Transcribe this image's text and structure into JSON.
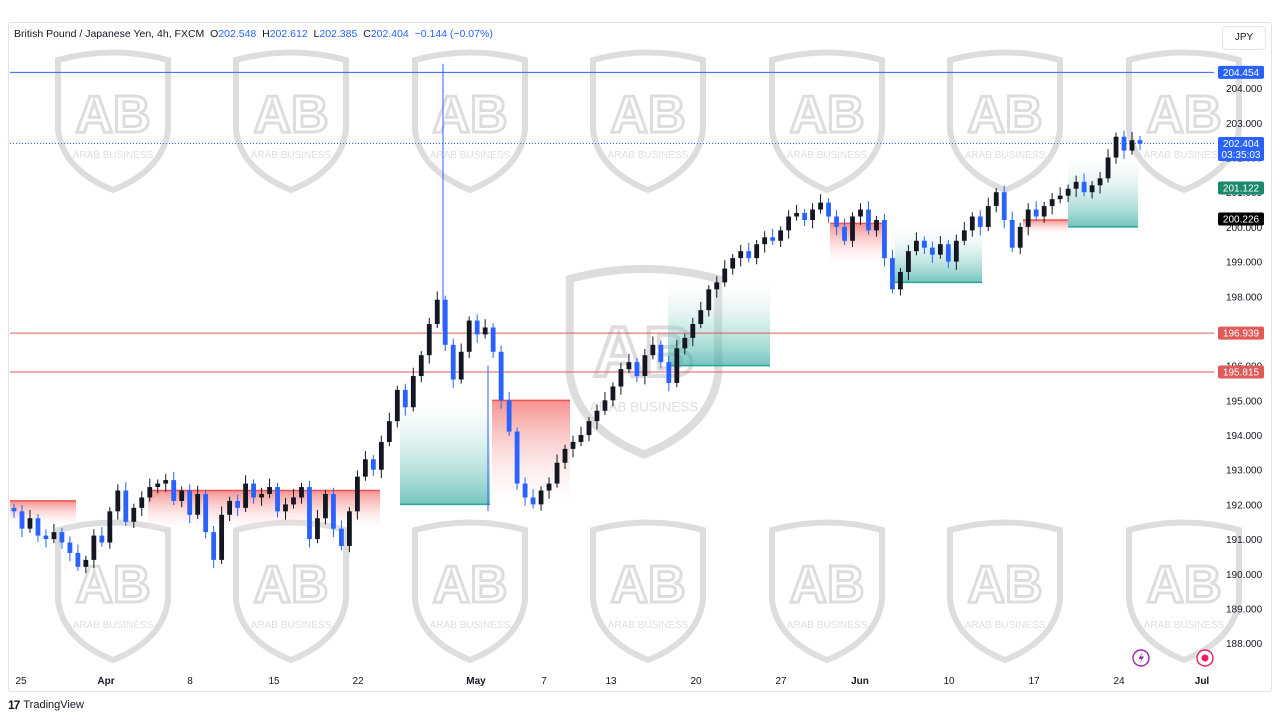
{
  "header": {
    "symbol": "British Pound / Japanese Yen, 4h, FXCM",
    "o_label": "O",
    "o_value": "202.548",
    "h_label": "H",
    "h_value": "202.612",
    "l_label": "L",
    "l_value": "202.385",
    "c_label": "C",
    "c_value": "202.404",
    "change": "−0.144 (−0.07%)"
  },
  "currency_button": "JPY",
  "branding": {
    "logo": "TradingView"
  },
  "watermark_text": "ARAB BUSINESS",
  "colors": {
    "candle_up": "#131722",
    "candle_down": "#2962ff",
    "support_fill": "#26a69a",
    "resistance_fill": "#ef5350",
    "top_line": "#2962ff",
    "red_line": "#e05a5a",
    "price_tag": "#2962ff"
  },
  "chart_data": {
    "type": "candlestick",
    "title": "British Pound / Japanese Yen, 4h, FXCM",
    "y_axis": {
      "ticks": [
        188,
        189,
        190,
        191,
        192,
        193,
        194,
        195,
        196,
        197,
        198,
        199,
        200,
        201,
        202,
        203,
        204
      ],
      "tick_labels": [
        "188.000",
        "189.000",
        "190.000",
        "191.000",
        "192.000",
        "193.000",
        "194.000",
        "195.000",
        "196.000",
        "197.000",
        "198.000",
        "199.000",
        "200.000",
        "201.000",
        "202.000",
        "203.000",
        "204.000"
      ],
      "range": [
        187.6,
        205.1
      ]
    },
    "x_axis": {
      "labels": [
        "25",
        "Apr",
        "8",
        "15",
        "22",
        "May",
        "7",
        "13",
        "20",
        "27",
        "Jun",
        "10",
        "17",
        "24",
        "Jul"
      ],
      "bold_labels": [
        "Apr",
        "May",
        "Jun",
        "Jul"
      ]
    },
    "horizontal_lines": [
      {
        "value": 204.454,
        "label": "204.454",
        "color": "#2962ff"
      },
      {
        "value": 196.939,
        "label": "196.939",
        "color": "#e05a5a"
      },
      {
        "value": 195.815,
        "label": "195.815",
        "color": "#e05a5a"
      }
    ],
    "price_tags": [
      {
        "value": 202.404,
        "label": "202.404",
        "countdown": "03:35:03",
        "color": "#2962ff"
      },
      {
        "value": 201.122,
        "label": "201.122",
        "color": "#1b8a6b"
      },
      {
        "value": 200.226,
        "label": "200.226",
        "color": "#000000"
      }
    ],
    "close_path": [
      191.8,
      191.3,
      191.6,
      191.1,
      191.0,
      191.2,
      190.9,
      190.6,
      190.2,
      190.4,
      191.1,
      190.9,
      191.8,
      192.4,
      191.5,
      191.9,
      192.2,
      192.5,
      192.6,
      192.7,
      192.1,
      192.4,
      191.7,
      192.3,
      191.2,
      190.4,
      191.7,
      192.1,
      191.9,
      192.6,
      192.2,
      192.3,
      192.5,
      191.8,
      192.0,
      192.2,
      192.5,
      191.0,
      191.6,
      192.3,
      191.3,
      190.8,
      191.8,
      192.8,
      193.3,
      193.0,
      193.8,
      194.4,
      195.3,
      194.8,
      195.7,
      196.3,
      197.2,
      197.9,
      196.6,
      195.6,
      196.4,
      197.3,
      196.9,
      197.1,
      196.4,
      195.0,
      194.1,
      192.6,
      192.2,
      192.0,
      192.4,
      192.6,
      193.2,
      193.6,
      193.8,
      194.0,
      194.4,
      194.7,
      195.0,
      195.4,
      195.9,
      196.1,
      195.7,
      196.3,
      196.6,
      196.1,
      195.5,
      196.5,
      196.8,
      197.2,
      197.6,
      198.2,
      198.4,
      198.8,
      199.1,
      199.3,
      199.1,
      199.5,
      199.7,
      199.6,
      199.9,
      200.3,
      200.4,
      200.2,
      200.5,
      200.7,
      200.3,
      200.0,
      199.6,
      200.3,
      200.5,
      199.9,
      200.2,
      199.1,
      198.2,
      198.7,
      199.3,
      199.6,
      199.4,
      199.2,
      199.5,
      199.0,
      199.6,
      199.9,
      200.3,
      200.0,
      200.6,
      201.0,
      200.2,
      199.4,
      200.0,
      200.5,
      200.3,
      200.6,
      200.8,
      200.9,
      201.1,
      201.3,
      201.0,
      201.2,
      201.4,
      202.0,
      202.6,
      202.2,
      202.5,
      202.4
    ],
    "supply_demand_zones": [
      {
        "type": "resistance",
        "top": 192.1,
        "bottom": 191.4
      },
      {
        "type": "resistance",
        "top": 192.4,
        "bottom": 191.3
      },
      {
        "type": "support",
        "top": 195.1,
        "bottom": 192.0
      },
      {
        "type": "resistance",
        "top": 195.0,
        "bottom": 192.0
      },
      {
        "type": "support",
        "top": 198.4,
        "bottom": 196.0
      },
      {
        "type": "resistance",
        "top": 200.1,
        "bottom": 198.9
      },
      {
        "type": "support",
        "top": 200.0,
        "bottom": 198.4
      },
      {
        "type": "resistance",
        "top": 200.2,
        "bottom": 199.8
      },
      {
        "type": "support",
        "top": 202.0,
        "bottom": 200.0
      }
    ]
  }
}
